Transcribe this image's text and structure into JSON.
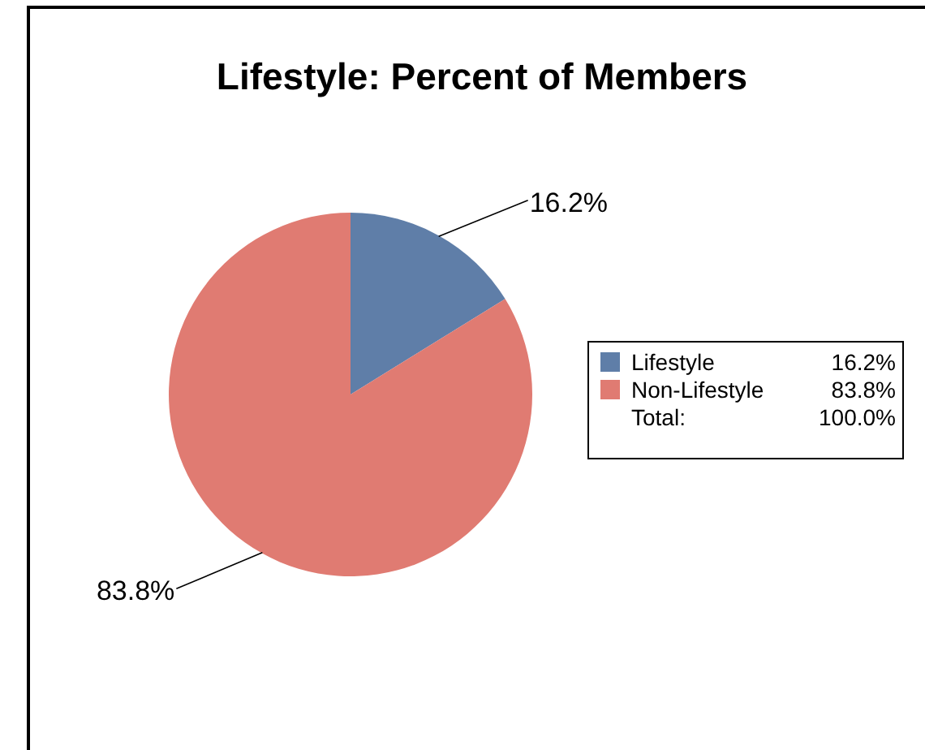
{
  "chart_data": {
    "type": "pie",
    "title": "Lifestyle: Percent of Members",
    "categories": [
      "Lifestyle",
      "Non-Lifestyle"
    ],
    "values": [
      16.2,
      83.8
    ],
    "value_labels": [
      "16.2%",
      "83.8%"
    ],
    "colors": [
      "#5f7ea8",
      "#e07b72"
    ],
    "legend": "right",
    "annotations": [
      "Total:",
      "100.0%"
    ]
  }
}
